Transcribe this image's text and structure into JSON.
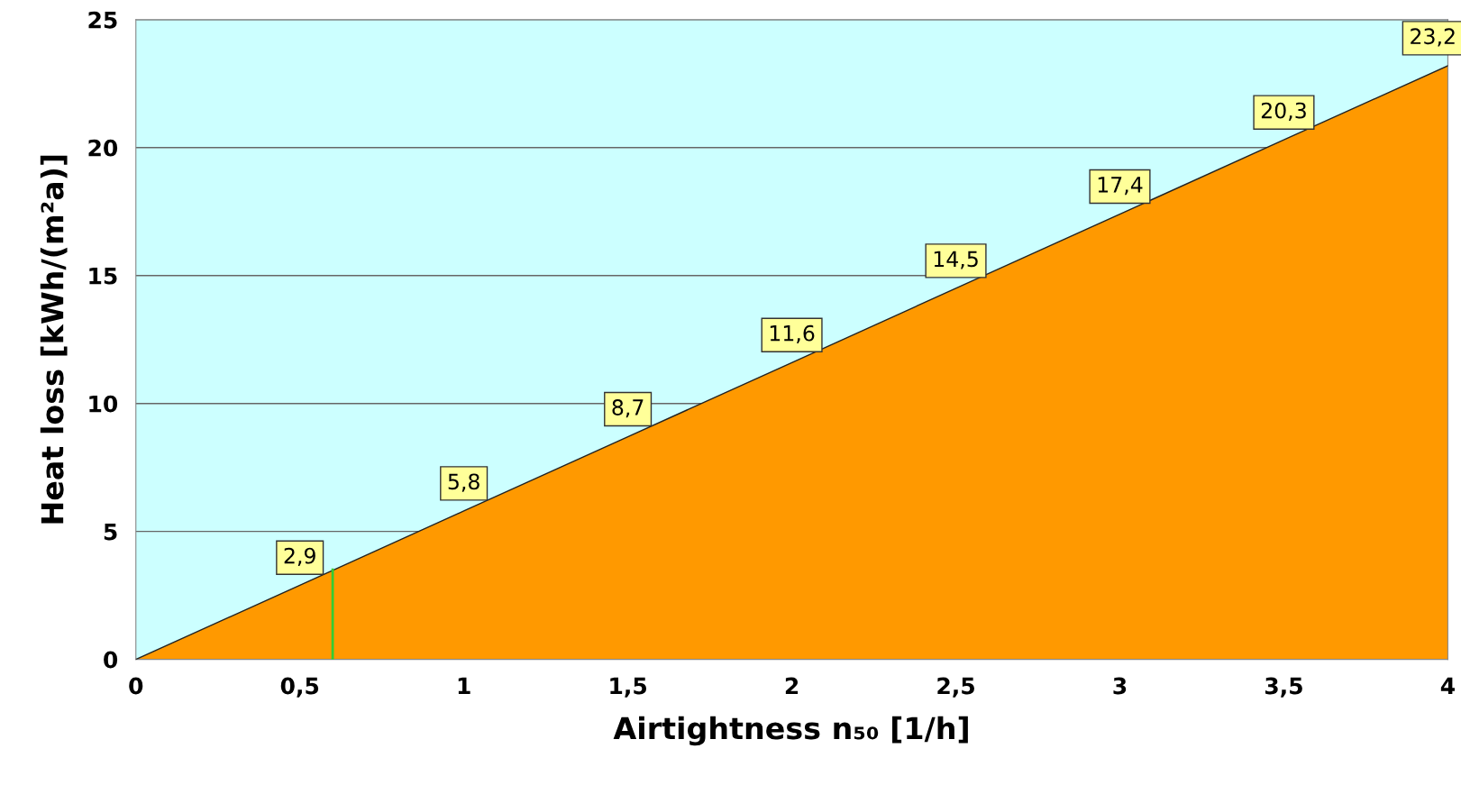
{
  "chart_data": {
    "type": "area",
    "xlabel": "Airtightness n₅₀ [1/h]",
    "ylabel": "Heat loss [kWh/(m²a)]",
    "x": [
      0,
      0.5,
      1,
      1.5,
      2,
      2.5,
      3,
      3.5,
      4
    ],
    "series": [
      {
        "color": "#ff9900",
        "values": [
          0,
          2.9,
          5.8,
          8.7,
          11.6,
          14.5,
          17.4,
          20.3,
          23.2
        ],
        "value_labels": [
          null,
          "2,9",
          "5,8",
          "8,7",
          "11,6",
          "14,5",
          "17,4",
          "20,3",
          "23,2"
        ]
      }
    ],
    "xlim": [
      0,
      4
    ],
    "ylim": [
      0,
      25
    ],
    "xticks": [
      0,
      {
        "value": 0.5,
        "label": "0,5"
      },
      1,
      {
        "value": 1.5,
        "label": "1,5"
      },
      2,
      {
        "value": 2.5,
        "label": "2,5"
      },
      3,
      {
        "value": 3.5,
        "label": "3,5"
      },
      4
    ],
    "yticks": [
      0,
      5,
      10,
      15,
      20,
      25
    ],
    "grid": "y",
    "ref_lines": [
      {
        "axis": "x",
        "value": 0.6,
        "color": "#33cc33"
      }
    ]
  }
}
